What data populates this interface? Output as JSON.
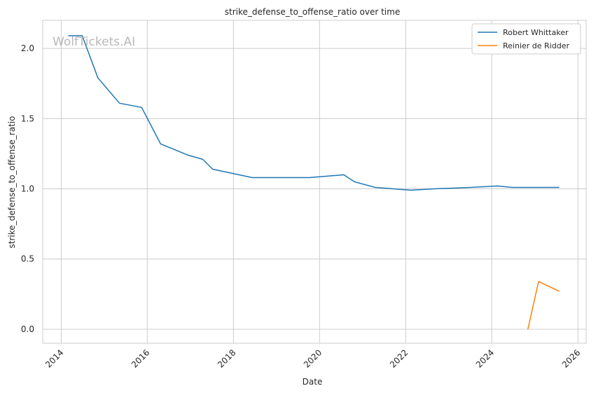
{
  "watermark": "WolfTickets.AI",
  "chart_data": {
    "type": "line",
    "title": "strike_defense_to_offense_ratio over time",
    "xlabel": "Date",
    "ylabel": "strike_defense_to_offense_ratio",
    "x_ticks": [
      "2014",
      "2016",
      "2018",
      "2020",
      "2022",
      "2024",
      "2026"
    ],
    "y_ticks": [
      "0.0",
      "0.5",
      "1.0",
      "1.5",
      "2.0"
    ],
    "ylim": [
      -0.1,
      2.2
    ],
    "xlim": [
      "2013-07-28",
      "2026-03-12"
    ],
    "grid": true,
    "legend_position": "top-right",
    "colors": {
      "Robert Whittaker": "#1f77b4",
      "Reinier de Ridder": "#ff7f0e"
    },
    "series": [
      {
        "name": "Robert Whittaker",
        "x": [
          "2014-03-01",
          "2014-06-28",
          "2014-11-08",
          "2015-05-10",
          "2015-11-14",
          "2016-04-23",
          "2016-12-10",
          "2017-04-15",
          "2017-07-08",
          "2018-06-09",
          "2019-10-06",
          "2020-07-25",
          "2020-10-24",
          "2021-04-17",
          "2022-02-12",
          "2022-09-03",
          "2023-07-08",
          "2024-02-17",
          "2024-06-22",
          "2024-10-26",
          "2025-07-26"
        ],
        "y": [
          2.09,
          2.09,
          1.79,
          1.61,
          1.58,
          1.32,
          1.24,
          1.21,
          1.14,
          1.08,
          1.08,
          1.1,
          1.05,
          1.01,
          0.99,
          1.0,
          1.01,
          1.02,
          1.01,
          1.01,
          1.01
        ]
      },
      {
        "name": "Reinier de Ridder",
        "x": [
          "2024-11-02",
          "2025-02-01",
          "2025-07-26"
        ],
        "y": [
          0.0,
          0.34,
          0.27
        ]
      }
    ]
  }
}
